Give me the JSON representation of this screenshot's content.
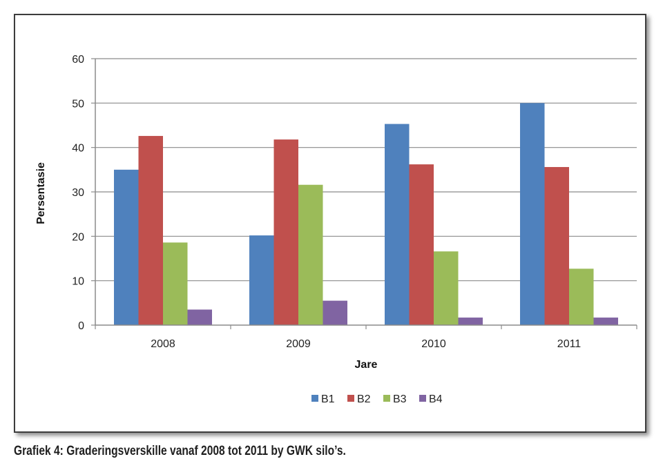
{
  "caption": "Grafiek 4: Graderingsverskille vanaf 2008 tot 2011 by GWK silo’s.",
  "chart_data": {
    "type": "bar",
    "categories": [
      "2008",
      "2009",
      "2010",
      "2011"
    ],
    "series": [
      {
        "name": "B1",
        "color": "#4F81BD",
        "values": [
          35,
          20.2,
          45.3,
          50
        ]
      },
      {
        "name": "B2",
        "color": "#C0504D",
        "values": [
          42.6,
          41.8,
          36.2,
          35.6
        ]
      },
      {
        "name": "B3",
        "color": "#9BBB59",
        "values": [
          18.6,
          31.6,
          16.6,
          12.7
        ]
      },
      {
        "name": "B4",
        "color": "#8064A2",
        "values": [
          3.5,
          5.5,
          1.7,
          1.7
        ]
      }
    ],
    "xlabel": "Jare",
    "ylabel": "Persentasie",
    "ylim": [
      0,
      60
    ],
    "yticks": [
      0,
      10,
      20,
      30,
      40,
      50,
      60
    ],
    "grid": true,
    "legend": "bottom"
  }
}
